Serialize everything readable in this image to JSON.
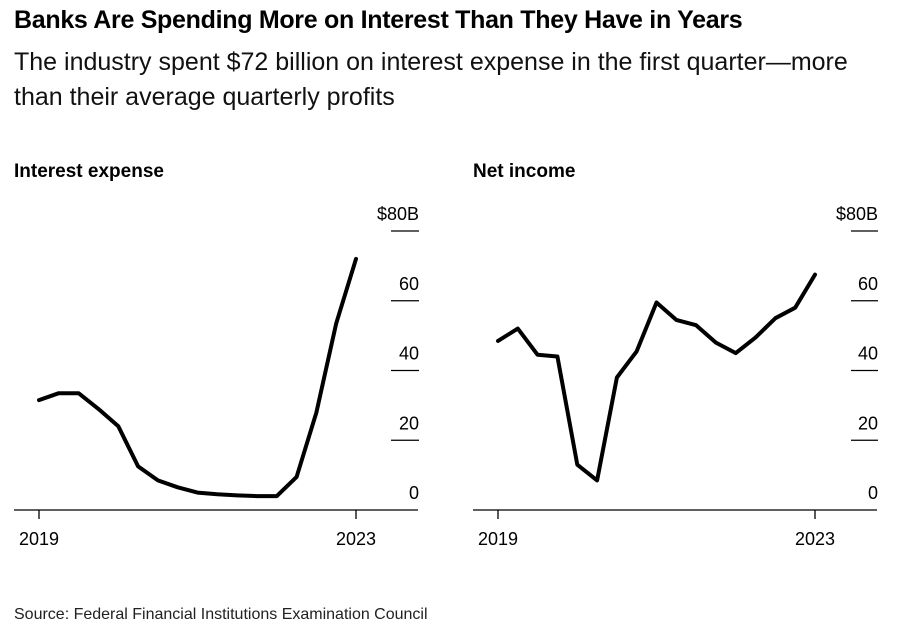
{
  "title": "Banks Are Spending More on Interest Than They Have in Years",
  "subtitle": "The industry spent $72 billion on interest expense in the first quarter—more than their average quarterly profits",
  "source": "Source: Federal Financial Institutions Examination Council",
  "chart_data": [
    {
      "type": "line",
      "title": "Interest expense",
      "x_range": [
        2019.0,
        2023.0
      ],
      "x_ticks": [
        2019,
        2023
      ],
      "x_tick_labels": [
        "2019",
        "2023"
      ],
      "y_ticks": [
        0,
        20,
        40,
        60,
        80
      ],
      "y_tick_labels": [
        "0",
        "20",
        "40",
        "60",
        "$80B"
      ],
      "ylim": [
        0,
        80
      ],
      "grid": false,
      "series": [
        {
          "x": [
            2019.0,
            2019.25,
            2019.5,
            2019.75,
            2020.0,
            2020.25,
            2020.5,
            2020.75,
            2021.0,
            2021.25,
            2021.5,
            2021.75,
            2022.0,
            2022.25,
            2022.5,
            2022.75,
            2023.0
          ],
          "values": [
            31.5,
            33.5,
            33.5,
            29,
            24,
            12.5,
            8.5,
            6.5,
            5,
            4.5,
            4.2,
            4,
            4,
            9.5,
            28,
            53.5,
            72
          ]
        }
      ]
    },
    {
      "type": "line",
      "title": "Net income",
      "x_range": [
        2019.0,
        2023.0
      ],
      "x_ticks": [
        2019,
        2023
      ],
      "x_tick_labels": [
        "2019",
        "2023"
      ],
      "y_ticks": [
        0,
        20,
        40,
        60,
        80
      ],
      "y_tick_labels": [
        "0",
        "20",
        "40",
        "60",
        "$80B"
      ],
      "ylim": [
        0,
        80
      ],
      "grid": false,
      "series": [
        {
          "x": [
            2019.0,
            2019.25,
            2019.5,
            2019.75,
            2020.0,
            2020.25,
            2020.5,
            2020.75,
            2021.0,
            2021.25,
            2021.5,
            2021.75,
            2022.0,
            2022.25,
            2022.5,
            2022.75,
            2023.0
          ],
          "values": [
            48.5,
            52,
            44.5,
            44,
            13,
            8.5,
            38,
            45.5,
            59.5,
            54.5,
            53,
            48,
            45,
            49.5,
            55,
            58,
            67.5
          ]
        }
      ]
    }
  ]
}
